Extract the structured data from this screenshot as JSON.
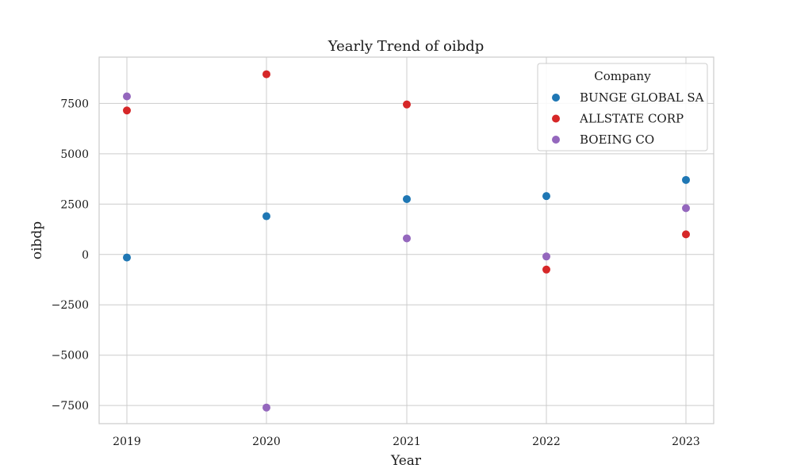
{
  "chart_data": {
    "type": "scatter",
    "title": "Yearly Trend of oibdp",
    "xlabel": "Year",
    "ylabel": "oibdp",
    "categories": [
      "2019",
      "2020",
      "2021",
      "2022",
      "2023"
    ],
    "ylim": [
      -8400,
      9800
    ],
    "yticks": [
      -7500,
      -5000,
      -2500,
      0,
      2500,
      5000,
      7500
    ],
    "ytick_labels": [
      "−7500",
      "−5000",
      "−2500",
      "0",
      "2500",
      "5000",
      "7500"
    ],
    "grid": true,
    "legend": {
      "title": "Company",
      "placement": "top-right"
    },
    "series": [
      {
        "name": "BUNGE GLOBAL SA",
        "color": "#1f77b4",
        "values": [
          -150,
          1900,
          2750,
          2900,
          3700
        ]
      },
      {
        "name": "ALLSTATE CORP",
        "color": "#d62728",
        "values": [
          7150,
          8950,
          7450,
          -750,
          1000
        ]
      },
      {
        "name": "BOEING CO",
        "color": "#9467bd",
        "values": [
          7850,
          -7600,
          800,
          -100,
          2300
        ]
      }
    ]
  }
}
